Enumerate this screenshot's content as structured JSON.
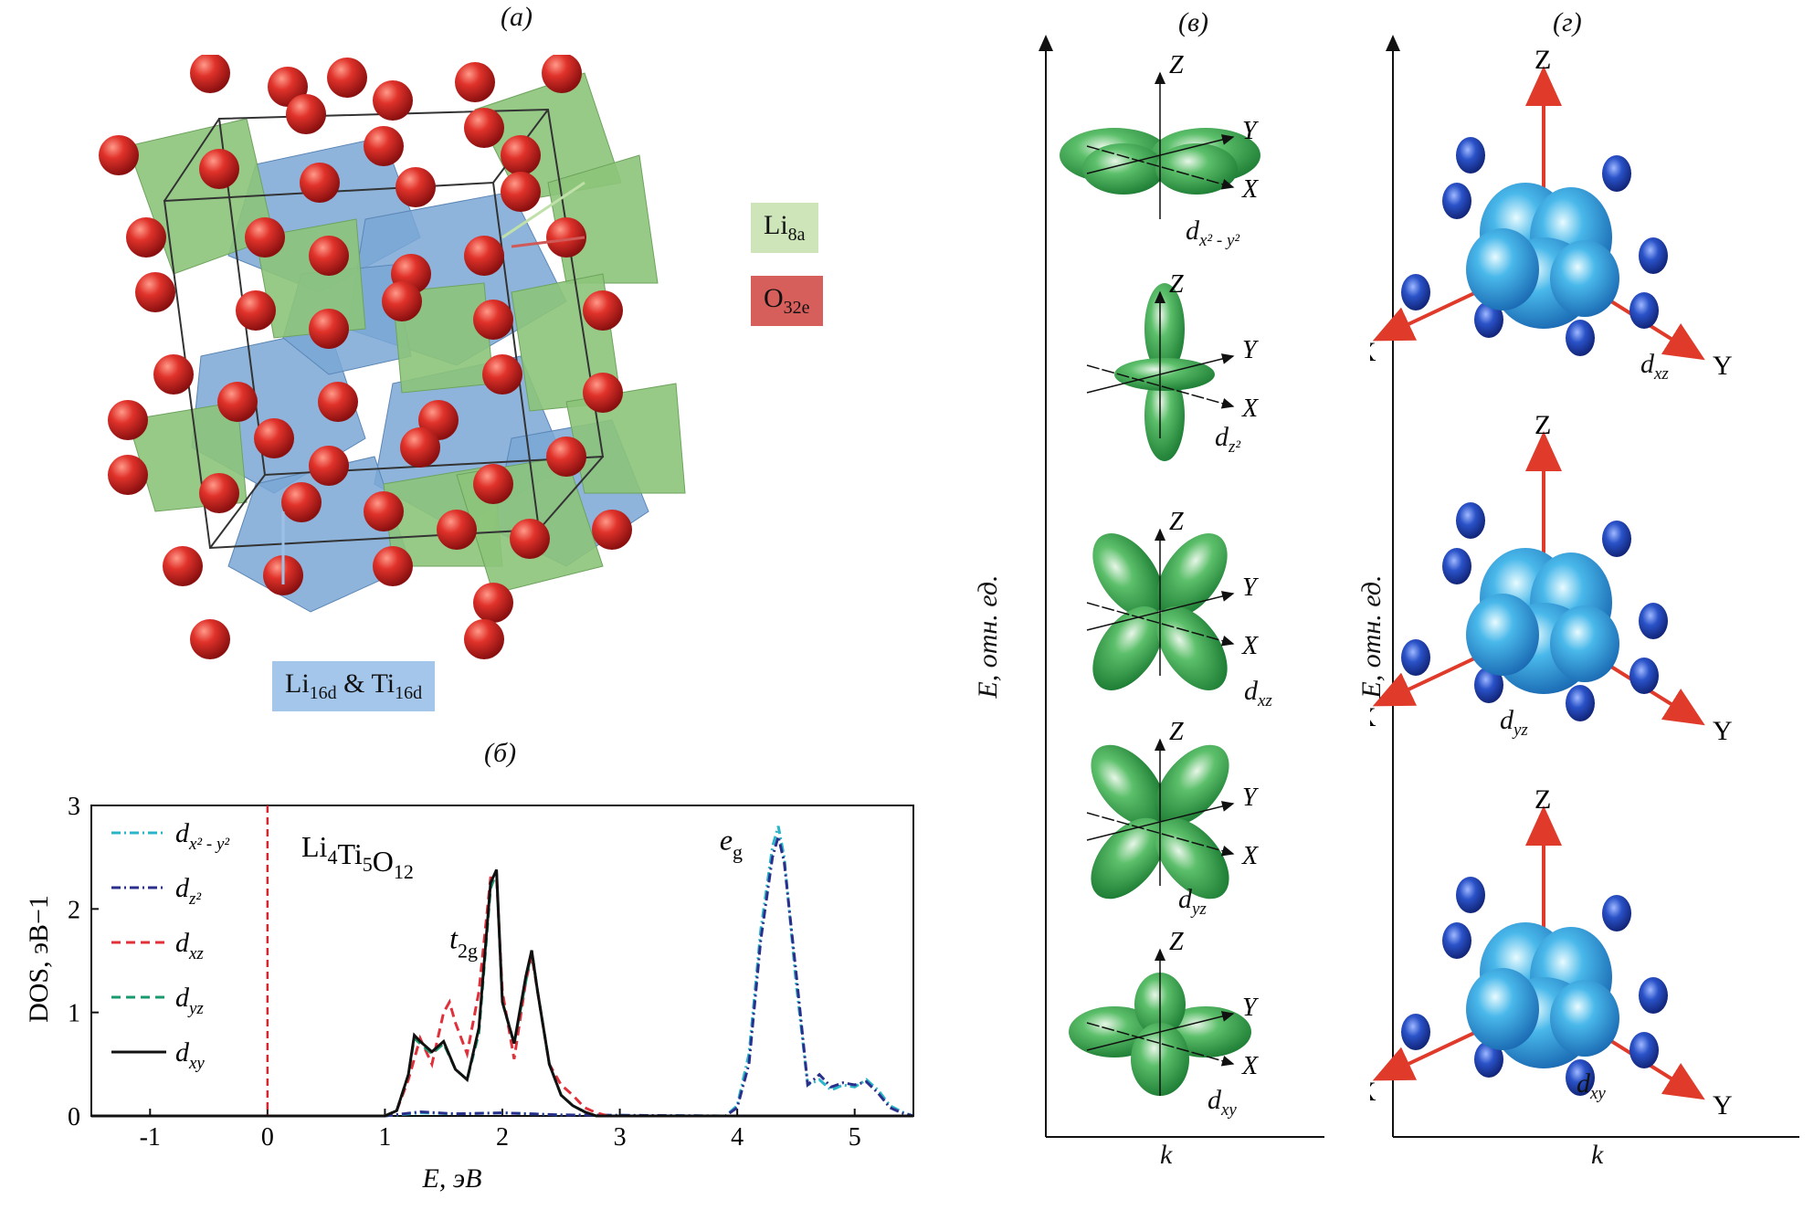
{
  "panels": {
    "a": "(a)",
    "b": "(б)",
    "v": "(в)",
    "g": "(г)"
  },
  "crystal": {
    "li8a": {
      "base": "Li",
      "sub": "8a"
    },
    "o32e": {
      "base": "O",
      "sub": "32e"
    },
    "li16d": {
      "base1": "Li",
      "sub1": "16d",
      "mid": " & ",
      "base2": "Ti",
      "sub2": "16d"
    },
    "colors": {
      "oxygen": "#d42a26",
      "tetra": "#8cc47a",
      "octa": "#7aa7d6",
      "li_box": "#bfe0a8",
      "o_box": "#d05a57",
      "li16_box": "#9dc0e6"
    }
  },
  "orbitals_v": {
    "y_axis_label": "E, отн. ед.",
    "x_axis_label": "k",
    "items": [
      {
        "label": "d",
        "sub": "x² - y²"
      },
      {
        "label": "d",
        "sub": "z²"
      },
      {
        "label": "d",
        "sub": "xz"
      },
      {
        "label": "d",
        "sub": "yz"
      },
      {
        "label": "d",
        "sub": "xy"
      }
    ],
    "axes": {
      "z": "Z",
      "y": "Y",
      "x": "X"
    }
  },
  "orbitals_g": {
    "y_axis_label": "E, отн. ед.",
    "x_axis_label": "k",
    "items": [
      {
        "label": "d",
        "sub": "xz"
      },
      {
        "label": "d",
        "sub": "yz"
      },
      {
        "label": "d",
        "sub": "xy"
      }
    ],
    "axes": {
      "z": "Z",
      "y": "Y",
      "x": "X"
    }
  },
  "chart_data": {
    "type": "line",
    "annotation_formula": "Li4Ti5O12",
    "xlabel": "E, эВ",
    "ylabel": "DOS, эВ−1",
    "xlim": [
      -1.5,
      5.5
    ],
    "ylim": [
      0,
      3
    ],
    "xticks": [
      -1,
      0,
      1,
      2,
      3,
      4,
      5
    ],
    "yticks": [
      0,
      1,
      2,
      3
    ],
    "fermi_level": 0,
    "peak_labels": [
      {
        "text": "t",
        "sub": "2g",
        "x": 1.55,
        "y": 1.62
      },
      {
        "text": "e",
        "sub": "g",
        "x": 3.85,
        "y": 2.57
      }
    ],
    "legend": [
      {
        "name": "d_{x²-y²}",
        "main": "d",
        "sub": "x² - y²",
        "color": "#2bb5c8",
        "dash": "dashdot"
      },
      {
        "name": "d_{z²}",
        "main": "d",
        "sub": "z²",
        "color": "#2b2f8c",
        "dash": "dashdot"
      },
      {
        "name": "d_{xz}",
        "main": "d",
        "sub": "xz",
        "color": "#e0303a",
        "dash": "dashed"
      },
      {
        "name": "d_{yz}",
        "main": "d",
        "sub": "yz",
        "color": "#1a9a6c",
        "dash": "dashed"
      },
      {
        "name": "d_{xy}",
        "main": "d",
        "sub": "xy",
        "color": "#111111",
        "dash": "solid"
      }
    ],
    "series": [
      {
        "name": "d_{x²-y²}",
        "color": "#2bb5c8",
        "dash": "dashdot",
        "x": [
          -1.5,
          1.0,
          1.3,
          1.6,
          2.0,
          2.5,
          3.9,
          4.0,
          4.1,
          4.2,
          4.3,
          4.35,
          4.4,
          4.5,
          4.6,
          4.7,
          4.8,
          4.9,
          5.0,
          5.1,
          5.2,
          5.3,
          5.4,
          5.5
        ],
        "y": [
          0,
          0,
          0.03,
          0.02,
          0.03,
          0.01,
          0,
          0.1,
          0.6,
          1.8,
          2.6,
          2.8,
          2.5,
          1.3,
          0.3,
          0.35,
          0.25,
          0.3,
          0.28,
          0.35,
          0.25,
          0.1,
          0.04,
          0
        ]
      },
      {
        "name": "d_{z²}",
        "color": "#2b2f8c",
        "dash": "dashdot",
        "x": [
          -1.5,
          1.0,
          1.3,
          1.6,
          2.0,
          2.5,
          3.9,
          4.0,
          4.1,
          4.2,
          4.3,
          4.35,
          4.4,
          4.5,
          4.6,
          4.7,
          4.8,
          4.9,
          5.0,
          5.1,
          5.2,
          5.3,
          5.4,
          5.5
        ],
        "y": [
          0,
          0,
          0.04,
          0.02,
          0.03,
          0.01,
          0,
          0.08,
          0.5,
          1.7,
          2.5,
          2.7,
          2.45,
          1.4,
          0.3,
          0.4,
          0.28,
          0.32,
          0.3,
          0.33,
          0.22,
          0.08,
          0.03,
          0
        ]
      },
      {
        "name": "d_{xz}",
        "color": "#e0303a",
        "dash": "dashed",
        "x": [
          -1.5,
          1.0,
          1.1,
          1.2,
          1.3,
          1.4,
          1.5,
          1.55,
          1.6,
          1.7,
          1.8,
          1.9,
          1.95,
          2.0,
          2.1,
          2.2,
          2.25,
          2.3,
          2.4,
          2.5,
          2.6,
          2.7,
          2.8,
          2.9,
          5.5
        ],
        "y": [
          0,
          0,
          0.05,
          0.35,
          0.75,
          0.5,
          1.0,
          1.1,
          0.9,
          0.6,
          1.2,
          2.3,
          2.3,
          1.2,
          0.55,
          1.3,
          1.55,
          1.2,
          0.5,
          0.3,
          0.2,
          0.08,
          0.03,
          0,
          0
        ]
      },
      {
        "name": "d_{yz}",
        "color": "#1a9a6c",
        "dash": "dashed",
        "x": [
          -1.5,
          1.0,
          1.1,
          1.2,
          1.25,
          1.3,
          1.4,
          1.5,
          1.6,
          1.7,
          1.8,
          1.9,
          1.95,
          2.0,
          2.1,
          2.2,
          2.25,
          2.3,
          2.4,
          2.5,
          2.6,
          2.7,
          2.8,
          5.5
        ],
        "y": [
          0,
          0,
          0.05,
          0.4,
          0.75,
          0.7,
          0.6,
          0.7,
          0.45,
          0.35,
          0.8,
          2.2,
          2.35,
          1.1,
          0.7,
          1.3,
          1.6,
          1.2,
          0.5,
          0.2,
          0.1,
          0.04,
          0,
          0
        ]
      },
      {
        "name": "d_{xy}",
        "color": "#111111",
        "dash": "solid",
        "x": [
          -1.5,
          1.0,
          1.1,
          1.2,
          1.25,
          1.3,
          1.4,
          1.5,
          1.6,
          1.7,
          1.8,
          1.9,
          1.95,
          2.0,
          2.1,
          2.2,
          2.25,
          2.3,
          2.4,
          2.5,
          2.6,
          2.7,
          2.8,
          5.5
        ],
        "y": [
          0,
          0,
          0.05,
          0.4,
          0.78,
          0.72,
          0.62,
          0.72,
          0.45,
          0.35,
          0.85,
          2.25,
          2.38,
          1.1,
          0.7,
          1.35,
          1.6,
          1.2,
          0.5,
          0.2,
          0.1,
          0.04,
          0,
          0
        ]
      }
    ]
  }
}
